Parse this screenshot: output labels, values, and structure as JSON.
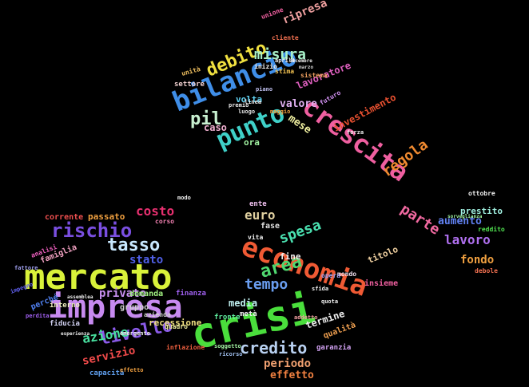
{
  "background": "#000000",
  "words": [
    {
      "text": "crisi",
      "color": "#4ade3c"
    },
    {
      "text": "mercato",
      "color": "#d9f23a"
    },
    {
      "text": "impresa",
      "color": "#c78af0"
    },
    {
      "text": "economia",
      "color": "#f05a34"
    },
    {
      "text": "bilancio",
      "color": "#3f8ee8"
    },
    {
      "text": "crescita",
      "color": "#ef5fa0"
    },
    {
      "text": "punto",
      "color": "#3fd0c8"
    },
    {
      "text": "rischio",
      "color": "#7a4fe0"
    },
    {
      "text": "area",
      "color": "#4fd870"
    },
    {
      "text": "tasso",
      "color": "#c8e8ff"
    },
    {
      "text": "debito",
      "color": "#f0e040"
    },
    {
      "text": "misura",
      "color": "#a8f0c8"
    },
    {
      "text": "pil",
      "color": "#c8f0d0"
    },
    {
      "text": "livello",
      "color": "#8a5ae8"
    },
    {
      "text": "credito",
      "color": "#b8d0f0"
    },
    {
      "text": "tempo",
      "color": "#6a9ef0"
    },
    {
      "text": "spesa",
      "color": "#4ae0b0"
    },
    {
      "text": "euro",
      "color": "#e0d0a0"
    },
    {
      "text": "costo",
      "color": "#e83070"
    },
    {
      "text": "regola",
      "color": "#f08a30"
    },
    {
      "text": "parte",
      "color": "#f068a0"
    },
    {
      "text": "lavoro",
      "color": "#b070f0"
    },
    {
      "text": "fondo",
      "color": "#f0a040"
    },
    {
      "text": "azione",
      "color": "#48e0a0"
    },
    {
      "text": "servizio",
      "color": "#f04a4a"
    },
    {
      "text": "periodo",
      "color": "#f0a070"
    },
    {
      "text": "effetto",
      "color": "#f08040"
    },
    {
      "text": "privato",
      "color": "#c890f0"
    },
    {
      "text": "stato",
      "color": "#5060e8"
    },
    {
      "text": "mese",
      "color": "#f0f0a0"
    },
    {
      "text": "valore",
      "color": "#e0b0f0"
    },
    {
      "text": "caso",
      "color": "#f0b0d0"
    },
    {
      "text": "ora",
      "color": "#a0f0a0"
    },
    {
      "text": "volta",
      "color": "#60d0f0"
    },
    {
      "text": "lavoratore",
      "color": "#e060c0"
    },
    {
      "text": "investimento",
      "color": "#e85030"
    },
    {
      "text": "aumento",
      "color": "#6080f0"
    },
    {
      "text": "prestito",
      "color": "#a0f0e0"
    },
    {
      "text": "reddito",
      "color": "#50e050"
    },
    {
      "text": "ripresa",
      "color": "#f0a0a0"
    },
    {
      "text": "media",
      "color": "#c0f0f0"
    },
    {
      "text": "recessione",
      "color": "#f0e080"
    },
    {
      "text": "domanda",
      "color": "#a0f080"
    },
    {
      "text": "passato",
      "color": "#f0a040"
    },
    {
      "text": "corrente",
      "color": "#f05050"
    },
    {
      "text": "famiglia",
      "color": "#f0a0c0"
    },
    {
      "text": "titolo",
      "color": "#f0d0a0"
    },
    {
      "text": "insieme",
      "color": "#f060a0"
    },
    {
      "text": "termine",
      "color": "#f0f0f0"
    },
    {
      "text": "qualità",
      "color": "#f0a050"
    },
    {
      "text": "garanzia",
      "color": "#d0a0f0"
    },
    {
      "text": "fine",
      "color": "#f0f0f0"
    },
    {
      "text": "fase",
      "color": "#e0e0e0"
    },
    {
      "text": "ente",
      "color": "#f0c0f0"
    },
    {
      "text": "gruppo",
      "color": "#d0d0d0"
    },
    {
      "text": "interno",
      "color": "#f0f0c0"
    },
    {
      "text": "fiducia",
      "color": "#d0d0f0"
    },
    {
      "text": "perché",
      "color": "#5080f0"
    },
    {
      "text": "capacità",
      "color": "#60a0f0"
    },
    {
      "text": "settore",
      "color": "#f0d0d0"
    },
    {
      "text": "unità",
      "color": "#f0c060"
    },
    {
      "text": "finanza",
      "color": "#a060f0"
    },
    {
      "text": "fronte",
      "color": "#60f0a0"
    },
    {
      "text": "metà",
      "color": "#f0f0f0"
    },
    {
      "text": "mondo",
      "color": "#f0e0f0"
    },
    {
      "text": "futuro",
      "color": "#d090f0"
    },
    {
      "text": "sistema",
      "color": "#f0a060"
    },
    {
      "text": "unione",
      "color": "#f060a0"
    },
    {
      "text": "cliente",
      "color": "#f07050"
    },
    {
      "text": "inizio",
      "color": "#f0f0f0"
    },
    {
      "text": "stima",
      "color": "#f0c050"
    },
    {
      "text": "piano",
      "color": "#c0c0f0"
    },
    {
      "text": "linea",
      "color": "#f0f0f0"
    },
    {
      "text": "luogo",
      "color": "#e0e0e0"
    },
    {
      "text": "premio",
      "color": "#f0f0f0"
    },
    {
      "text": "ottobre",
      "color": "#f0f0f0"
    },
    {
      "text": "debole",
      "color": "#f07050"
    },
    {
      "text": "quadro",
      "color": "#f0f0a0"
    },
    {
      "text": "azienda",
      "color": "#d0d0d0"
    },
    {
      "text": "opera",
      "color": "#a0a0f0"
    },
    {
      "text": "sfida",
      "color": "#f0f0f0"
    },
    {
      "text": "quota",
      "color": "#f0f0f0"
    },
    {
      "text": "addetto",
      "color": "#f0a0a0"
    },
    {
      "text": "inflazione",
      "color": "#f06040"
    },
    {
      "text": "soggetto",
      "color": "#a0f0a0"
    },
    {
      "text": "ricorso",
      "color": "#a0c0f0"
    },
    {
      "text": "effetto",
      "color": "#f0a040"
    },
    {
      "text": "analisi",
      "color": "#f060c0"
    },
    {
      "text": "fattore",
      "color": "#a0a0f0"
    },
    {
      "text": "impegno",
      "color": "#6060f0"
    },
    {
      "text": "perdita",
      "color": "#a060f0"
    },
    {
      "text": "corso",
      "color": "#f080b0"
    },
    {
      "text": "modo",
      "color": "#f0f0f0"
    },
    {
      "text": "vita",
      "color": "#f0f0f0"
    },
    {
      "text": "forza",
      "color": "#f0f0f0"
    },
    {
      "text": "aprile",
      "color": "#f0f0f0"
    },
    {
      "text": "maggio",
      "color": "#f0a040"
    },
    {
      "text": "dicembre",
      "color": "#f0f0f0"
    },
    {
      "text": "marzo",
      "color": "#d0d0d0"
    },
    {
      "text": "emergente",
      "color": "#f0f0f0"
    },
    {
      "text": "esperienza",
      "color": "#f0f0f0"
    },
    {
      "text": "assemblea",
      "color": "#f0f0f0"
    },
    {
      "text": "sorveglianza",
      "color": "#a0f0a0"
    }
  ]
}
